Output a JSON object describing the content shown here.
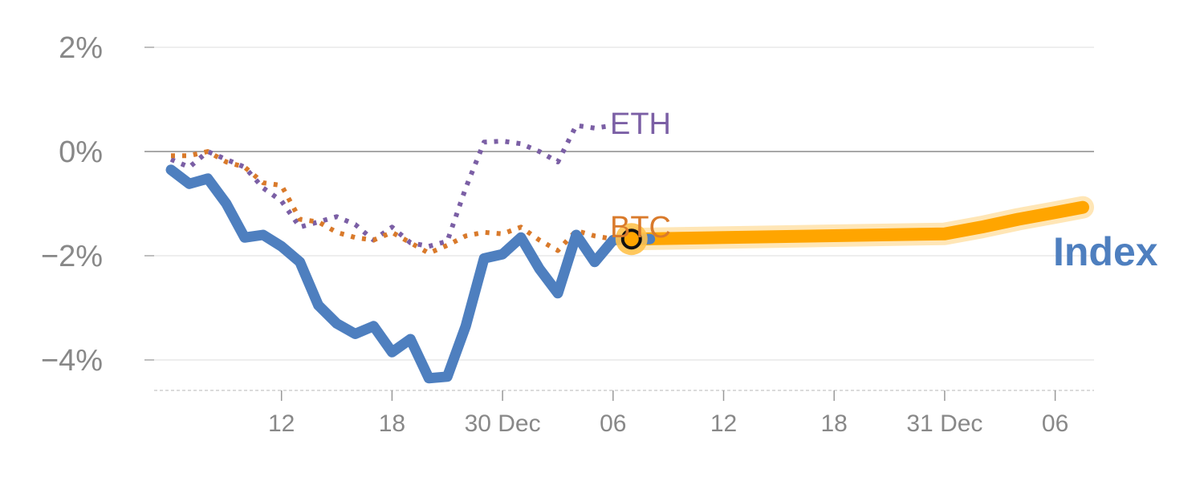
{
  "chart_data": {
    "type": "line",
    "title": "",
    "xlabel": "",
    "ylabel": "",
    "ylim": [
      -4.5,
      2.2
    ],
    "y_ticks": [
      {
        "value": 2,
        "label": "2%"
      },
      {
        "value": 0,
        "label": "0%"
      },
      {
        "value": -2,
        "label": "−2%"
      },
      {
        "value": -4,
        "label": "−4%"
      }
    ],
    "x_ticks": [
      {
        "step": 6,
        "label": "12"
      },
      {
        "step": 12,
        "label": "18"
      },
      {
        "step": 18,
        "label": "30 Dec"
      },
      {
        "step": 24,
        "label": "06"
      },
      {
        "step": 30,
        "label": "12"
      },
      {
        "step": 36,
        "label": "18"
      },
      {
        "step": 42,
        "label": "31 Dec"
      },
      {
        "step": 48,
        "label": "06"
      }
    ],
    "grid": true,
    "zero_line": true,
    "series": [
      {
        "name": "Index",
        "color": "#4e7fbf",
        "style": "solid",
        "x": [
          0,
          1,
          2,
          3,
          4,
          5,
          6,
          7,
          8,
          9,
          10,
          11,
          12,
          13,
          14,
          15,
          16,
          17,
          18,
          19,
          20,
          21,
          22,
          23,
          24,
          25,
          26
        ],
        "y": [
          -0.35,
          -0.62,
          -0.52,
          -1.0,
          -1.65,
          -1.6,
          -1.82,
          -2.12,
          -2.95,
          -3.3,
          -3.5,
          -3.35,
          -3.85,
          -3.6,
          -4.35,
          -4.32,
          -3.35,
          -2.05,
          -1.97,
          -1.65,
          -2.25,
          -2.72,
          -1.6,
          -2.12,
          -1.7,
          -1.68,
          -1.68
        ]
      },
      {
        "name": "BTC",
        "color": "#d97a2b",
        "style": "dotted",
        "x": [
          0,
          1,
          2,
          3,
          4,
          5,
          6,
          7,
          8,
          9,
          10,
          11,
          12,
          13,
          14,
          15,
          16,
          17,
          18,
          19,
          20,
          21,
          22,
          23,
          24,
          25
        ],
        "y": [
          -0.08,
          -0.08,
          -0.0,
          -0.2,
          -0.3,
          -0.6,
          -0.65,
          -1.3,
          -1.35,
          -1.55,
          -1.65,
          -1.7,
          -1.55,
          -1.75,
          -1.95,
          -1.8,
          -1.62,
          -1.55,
          -1.58,
          -1.45,
          -1.7,
          -1.9,
          -1.52,
          -1.62,
          -1.68,
          -1.7
        ]
      },
      {
        "name": "ETH",
        "color": "#7b5fa5",
        "style": "dotted",
        "x": [
          0,
          1,
          2,
          3,
          4,
          5,
          6,
          7,
          8,
          9,
          10,
          11,
          12,
          13,
          14,
          15,
          16,
          17,
          18,
          19,
          20,
          21,
          22,
          23,
          24
        ],
        "y": [
          -0.15,
          -0.3,
          0.0,
          -0.15,
          -0.3,
          -0.7,
          -0.95,
          -1.45,
          -1.35,
          -1.25,
          -1.4,
          -1.7,
          -1.45,
          -1.75,
          -1.82,
          -1.72,
          -0.7,
          0.18,
          0.2,
          0.15,
          0.0,
          -0.2,
          0.5,
          0.45,
          0.5
        ]
      },
      {
        "name": "",
        "color": "#ffa500",
        "style": "highlight",
        "x": [
          25,
          42,
          44,
          46,
          48,
          49.5
        ],
        "y": [
          -1.68,
          -1.58,
          -1.45,
          -1.3,
          -1.17,
          -1.07
        ]
      }
    ],
    "labels": {
      "index": "Index",
      "btc": "BTC",
      "eth": "ETH"
    },
    "marker": {
      "x": 25,
      "y": -1.68
    }
  }
}
